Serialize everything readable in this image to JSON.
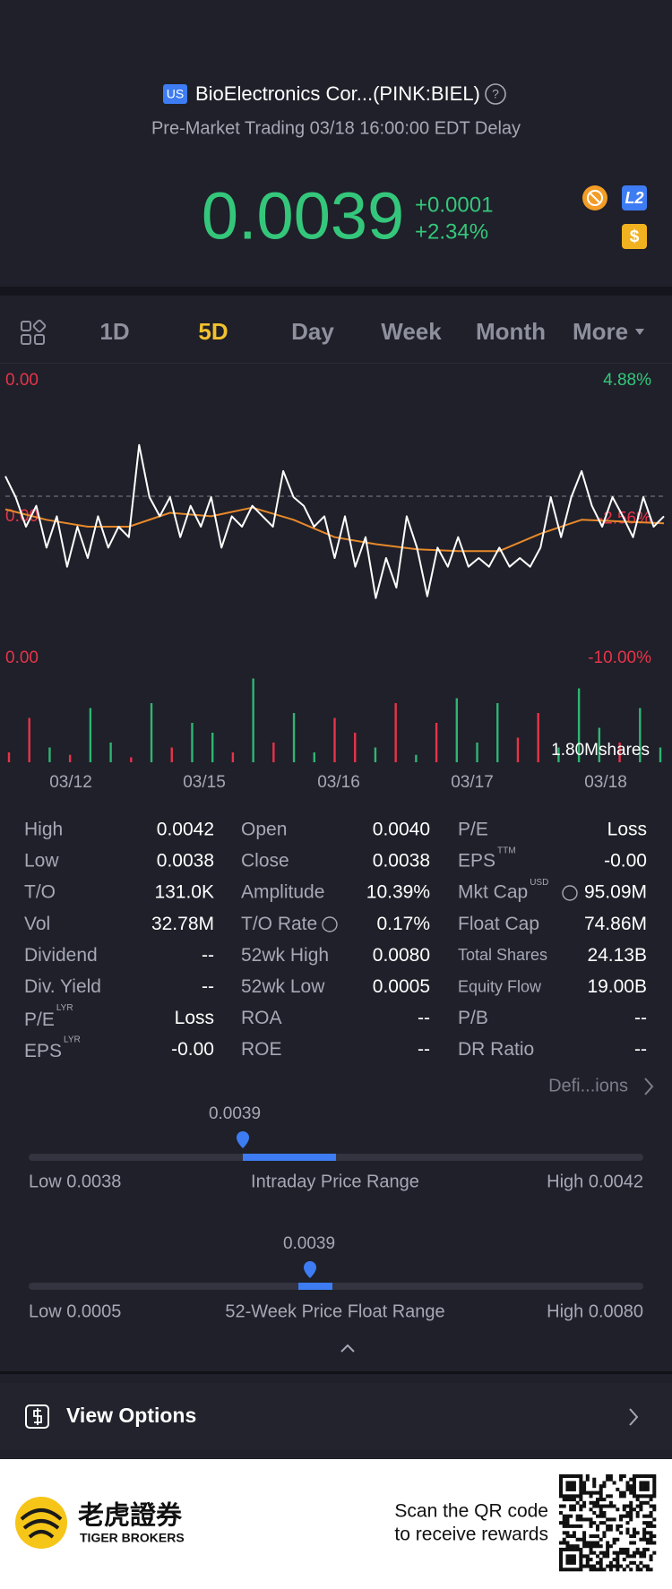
{
  "header": {
    "market_badge": "US",
    "title": "BioElectronics Cor...(PINK:BIEL)",
    "help": "?",
    "subtitle": "Pre-Market Trading 03/18 16:00:00 EDT Delay",
    "price": "0.0039",
    "change": "+0.0001",
    "change_pct": "+2.34%",
    "badges": [
      "L2",
      "$"
    ]
  },
  "tabs": [
    "1D",
    "5D",
    "Day",
    "Week",
    "Month",
    "More"
  ],
  "chart": {
    "type": "line",
    "price_labels": [
      "0.00",
      "0.00",
      "0.00"
    ],
    "ylim": [
      -10,
      4.88
    ],
    "yticks": [
      {
        "value": 4.88,
        "label": "4.88%"
      },
      {
        "value": -2.56,
        "label": "-2.56%"
      },
      {
        "value": -10,
        "label": "-10.00%"
      }
    ],
    "x_labels": [
      "03/12",
      "03/15",
      "03/16",
      "03/17",
      "03/18"
    ],
    "price": {
      "color": "#ffffff",
      "values": [
        -0.1,
        -1.3,
        -3.0,
        -1.8,
        -4.2,
        -2.4,
        -5.3,
        -3.0,
        -4.8,
        -2.4,
        -4.2,
        -3.0,
        -3.6,
        1.7,
        -1.3,
        -2.4,
        -1.3,
        -3.6,
        -1.8,
        -3.0,
        -1.3,
        -4.2,
        -2.4,
        -3.0,
        -1.8,
        -2.4,
        -3.0,
        0.2,
        -1.3,
        -1.8,
        -3.0,
        -2.4,
        -4.8,
        -2.4,
        -5.3,
        -3.6,
        -7.1,
        -4.8,
        -6.5,
        -2.4,
        -4.2,
        -7.0,
        -4.2,
        -5.3,
        -3.6,
        -5.3,
        -4.8,
        -5.3,
        -4.2,
        -5.3,
        -4.8,
        -5.3,
        -4.2,
        -1.3,
        -3.6,
        -1.3,
        0.2,
        -1.8,
        -3.0,
        -1.3,
        -2.4,
        -3.6,
        -1.3,
        -3.0,
        -2.4
      ]
    },
    "average": {
      "color": "#e8892b",
      "values": [
        -2.0,
        -2.6,
        -3.0,
        -3.0,
        -2.2,
        -2.4,
        -1.9,
        -2.6,
        -3.6,
        -4.0,
        -4.3,
        -4.4,
        -4.4,
        -3.4,
        -2.6,
        -2.7,
        -2.8
      ]
    },
    "volume": {
      "ylim": [
        0,
        1800000
      ],
      "tick": {
        "value": 1800000,
        "label": "1.80Mshares"
      },
      "values": [
        200000,
        900000,
        300000,
        150000,
        1100000,
        400000,
        100000,
        1200000,
        300000,
        800000,
        600000,
        200000,
        1700000,
        400000,
        1000000,
        200000,
        900000,
        600000,
        300000,
        1200000,
        150000,
        800000,
        1300000,
        400000,
        1200000,
        500000,
        1000000,
        300000,
        1500000,
        700000,
        400000,
        1100000,
        300000
      ],
      "colors": [
        "#e8334a",
        "#e8334a",
        "#2fb574",
        "#e8334a",
        "#2fb574",
        "#2fb574",
        "#e8334a",
        "#2fb574",
        "#e8334a",
        "#2fb574",
        "#2fb574",
        "#e8334a",
        "#2fb574",
        "#e8334a",
        "#2fb574",
        "#2fb574",
        "#e8334a",
        "#e8334a",
        "#2fb574",
        "#e8334a",
        "#2fb574",
        "#e8334a",
        "#2fb574",
        "#2fb574",
        "#2fb574",
        "#e8334a",
        "#e8334a",
        "#2fb574",
        "#2fb574",
        "#2fb574",
        "#e8334a",
        "#2fb574",
        "#2fb574"
      ]
    }
  },
  "stats": [
    [
      {
        "label": "High",
        "value": "0.0042"
      },
      {
        "label": "Low",
        "value": "0.0038"
      },
      {
        "label": "T/O",
        "value": "131.0K"
      },
      {
        "label": "Vol",
        "value": "32.78M"
      },
      {
        "label": "Dividend",
        "value": "--"
      },
      {
        "label": "Div. Yield",
        "value": "--"
      },
      {
        "label": "P/E",
        "sup": "LYR",
        "value": "Loss"
      },
      {
        "label": "EPS",
        "sup": "LYR",
        "value": "-0.00"
      }
    ],
    [
      {
        "label": "Open",
        "value": "0.0040"
      },
      {
        "label": "Close",
        "value": "0.0038"
      },
      {
        "label": "Amplitude",
        "value": "10.39%"
      },
      {
        "label": "T/O Rate",
        "value": "0.17%"
      },
      {
        "label": "52wk High",
        "value": "0.0080"
      },
      {
        "label": "52wk Low",
        "value": "0.0005"
      },
      {
        "label": "ROA",
        "value": "--"
      },
      {
        "label": "ROE",
        "value": "--"
      }
    ],
    [
      {
        "label": "P/E",
        "value": "Loss"
      },
      {
        "label": "EPS",
        "sup": "TTM",
        "value": "-0.00"
      },
      {
        "label": "Mkt Cap",
        "sup": "USD",
        "value": "95.09M"
      },
      {
        "label": "Float Cap",
        "value": "74.86M"
      },
      {
        "label": "Total Shares",
        "value": "24.13B"
      },
      {
        "label": "Equity Flow",
        "value": "19.00B"
      },
      {
        "label": "P/B",
        "value": "--"
      },
      {
        "label": "DR Ratio",
        "value": "--"
      }
    ]
  ],
  "definitions": "Defi...ions",
  "ranges": [
    {
      "current": "0.0039",
      "low": "Low 0.0038",
      "title": "Intraday Price Range",
      "high": "High 0.0042"
    },
    {
      "current": "0.0039",
      "low": "Low 0.0005",
      "title": "52-Week Price Float Range",
      "high": "High 0.0080"
    }
  ],
  "options": "View Options",
  "footer": {
    "brand_cn": "老虎證券",
    "brand_en": "TIGER BROKERS",
    "scan_line1": "Scan the QR code",
    "scan_line2": "to receive rewards"
  }
}
